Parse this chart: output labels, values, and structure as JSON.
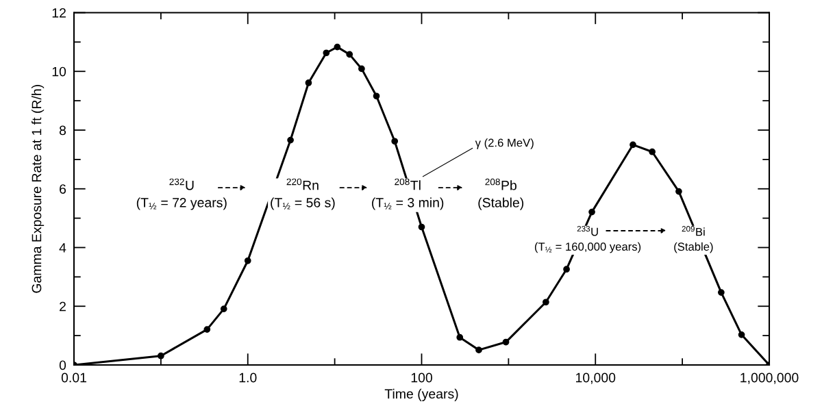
{
  "chart_data": {
    "type": "line",
    "xlabel": "Time (years)",
    "ylabel": "Gamma Exposure Rate at 1 ft (R/h)",
    "x": [
      0.01,
      0.1,
      0.34,
      0.53,
      1.0,
      3.1,
      5.0,
      8.0,
      10.7,
      14.8,
      20.4,
      30.2,
      49,
      100,
      275,
      455,
      933,
      2690,
      4650,
      9100,
      27000,
      45000,
      91000,
      280000,
      480000,
      1000000
    ],
    "series": [
      {
        "color": "#000000",
        "values": [
          0,
          0.31,
          1.21,
          1.91,
          3.55,
          7.66,
          9.61,
          10.63,
          10.83,
          10.58,
          10.09,
          9.16,
          7.62,
          4.7,
          0.94,
          0.51,
          0.78,
          2.14,
          3.26,
          5.21,
          7.5,
          7.26,
          5.91,
          2.47,
          1.03,
          0
        ]
      }
    ],
    "log": "x",
    "xlim": [
      0.01,
      1000000
    ],
    "xticks": [
      {
        "value": 0.01,
        "label": "0.01"
      },
      {
        "value": 0.1,
        "label": null
      },
      {
        "value": 1,
        "label": "1.0"
      },
      {
        "value": 10,
        "label": null
      },
      {
        "value": 100,
        "label": "100"
      },
      {
        "value": 1000,
        "label": null
      },
      {
        "value": 10000,
        "label": "10,000"
      },
      {
        "value": 100000,
        "label": null
      },
      {
        "value": 1000000,
        "label": "1,000,000"
      }
    ],
    "ylim": [
      0,
      12
    ],
    "yticks": [
      0,
      {
        "value": 1,
        "label": null
      },
      2,
      {
        "value": 3,
        "label": null
      },
      4,
      {
        "value": 5,
        "label": null
      },
      6,
      {
        "value": 7,
        "label": null
      },
      8,
      {
        "value": 9,
        "label": null
      },
      10,
      {
        "value": 11,
        "label": null
      },
      12
    ],
    "marker": "circle",
    "line_style": "solid",
    "grid": false,
    "legend": false,
    "annotations": [
      "$^{232}$U\n(T$_{½}$ = 72 years)",
      "$^{220}$Rn\n(T$_{½}$ = 56 s)",
      "$^{208}$Tl\n(T$_{½}$ = 3 min)",
      "$^{208}$Pb\n(Stable)",
      "γ (2.6 MeV)",
      "$^{233}$U\n(T$_{½}$ = 160,000 years)",
      "$^{209}$Bi\n(Stable)"
    ]
  }
}
